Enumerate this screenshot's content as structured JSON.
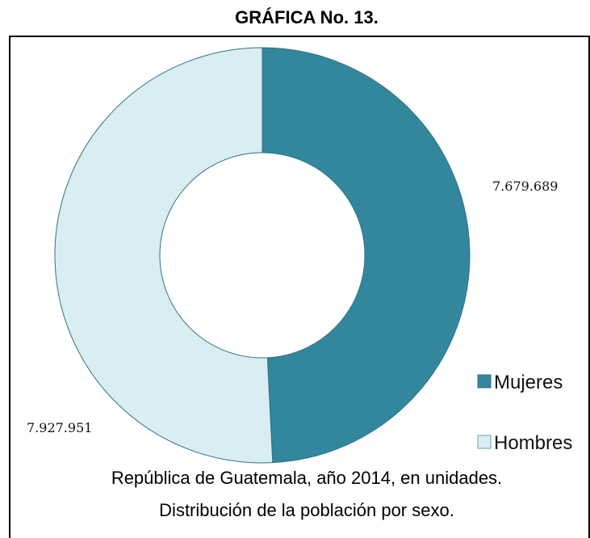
{
  "figure_title": "GRÁFICA No. 13.",
  "caption": {
    "line1": "República de Guatemala, año 2014, en unidades.",
    "line2": "Distribución de la población por sexo."
  },
  "colors": {
    "mujeres": "#33879c",
    "hombres": "#daedf3",
    "slice_stroke": "#2d7487"
  },
  "chart_data": {
    "type": "pie",
    "variant": "donut",
    "title": "",
    "categories": [
      "Mujeres",
      "Hombres"
    ],
    "values": [
      7679689,
      7927951
    ],
    "value_labels": [
      "7.679.689",
      "7.927.951"
    ],
    "legend": {
      "position": "right-bottom",
      "entries": [
        "Mujeres",
        "Hombres"
      ]
    }
  }
}
